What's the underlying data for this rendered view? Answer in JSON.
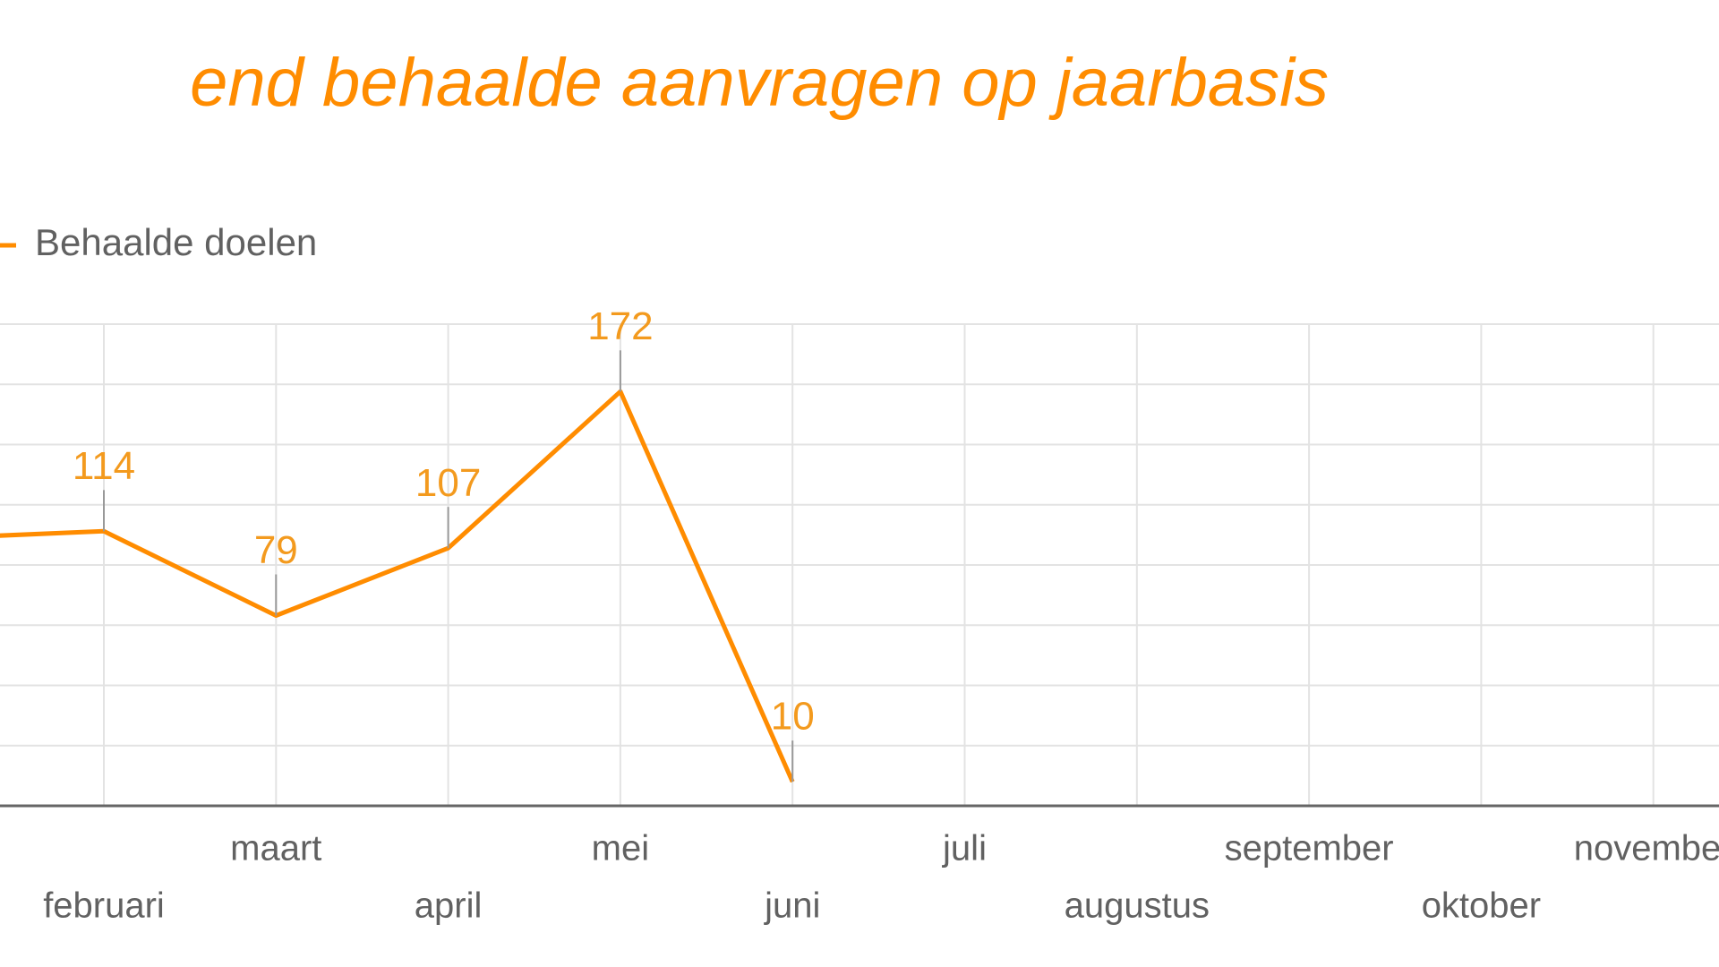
{
  "chart_data": {
    "type": "line",
    "title": "end behaalde aanvragen op jaarbasis",
    "categories": [
      null,
      "februari",
      "maart",
      "april",
      "mei",
      "juni",
      "juli",
      "augustus",
      "september",
      "oktober",
      "november"
    ],
    "series": [
      {
        "name": "Behaalde doelen",
        "color": "#ff8c00",
        "values": [
          111,
          114,
          79,
          107,
          172,
          10,
          null,
          null,
          null,
          null,
          null
        ]
      }
    ],
    "ylim": [
      0,
      200
    ],
    "yticks": [
      0,
      25,
      50,
      75,
      100,
      125,
      150,
      175,
      200
    ],
    "grid": true
  }
}
